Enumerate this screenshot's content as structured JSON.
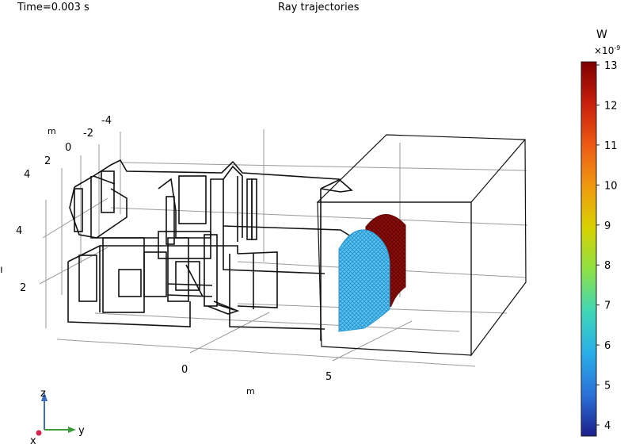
{
  "header": {
    "time_label": "Time=0.003 s",
    "plot_title": "Ray trajectories"
  },
  "colorbar": {
    "unit": "W",
    "exponent_label": "×10",
    "exponent_sup": "-9",
    "ticks": [
      "13",
      "12",
      "11",
      "10",
      "9",
      "8",
      "7",
      "6",
      "5",
      "4"
    ],
    "gradient_colors": [
      "#7f0000",
      "#c81e0c",
      "#ee5a14",
      "#f09a10",
      "#d8d200",
      "#8ee046",
      "#3fd7b8",
      "#2aaee8",
      "#2a72d8",
      "#1c1f8c"
    ]
  },
  "axes": {
    "left_unit": "m",
    "bottom_unit": "m",
    "top_ticks": [
      "-4",
      "-2",
      "0",
      "2",
      "4"
    ],
    "left_ticks": [
      "4",
      "2"
    ],
    "left_clipped_label": "ı",
    "bottom_ticks": [
      "0",
      "5"
    ]
  },
  "triad": {
    "z": "z",
    "y": "y",
    "x": "x"
  },
  "rays": {
    "front_color": "#38aee0",
    "back_color": "#7a0a06"
  }
}
